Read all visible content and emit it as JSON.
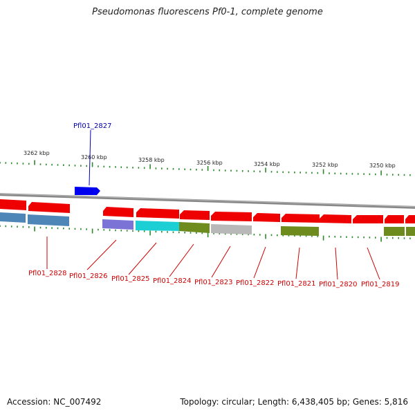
{
  "title": "Pseudomonas fluorescens Pf0-1, complete genome",
  "footer": {
    "accession": "Accession: NC_007492",
    "summary": "Topology: circular; Length: 6,438,405 bp; Genes: 5,816"
  },
  "colors": {
    "backbone": "#888888",
    "forward_gene": "#0000ee",
    "reverse_gene": "#ee0000",
    "tick": "#2a8a2a",
    "label_forward": "#0000aa",
    "label_reverse": "#cc0000",
    "cog_steelblue": "#4f86b8",
    "cog_lavender": "#7b73d6",
    "cog_cyan": "#1ccfd4",
    "cog_olive": "#6e8c1e",
    "cog_gray": "#b8b8b8"
  },
  "ticks": [
    {
      "label": "3262 kbp"
    },
    {
      "label": "3260 kbp"
    },
    {
      "label": "3258 kbp"
    },
    {
      "label": "3256 kbp"
    },
    {
      "label": "3254 kbp"
    },
    {
      "label": "3252 kbp"
    },
    {
      "label": "3250 kbp"
    }
  ],
  "genes": [
    {
      "name": "Pfl01_2827",
      "strand": "forward"
    },
    {
      "name": "Pfl01_2828",
      "strand": "reverse"
    },
    {
      "name": "Pfl01_2826",
      "strand": "reverse"
    },
    {
      "name": "Pfl01_2825",
      "strand": "reverse"
    },
    {
      "name": "Pfl01_2824",
      "strand": "reverse"
    },
    {
      "name": "Pfl01_2823",
      "strand": "reverse"
    },
    {
      "name": "Pfl01_2822",
      "strand": "reverse"
    },
    {
      "name": "Pfl01_2821",
      "strand": "reverse"
    },
    {
      "name": "Pfl01_2820",
      "strand": "reverse"
    },
    {
      "name": "Pfl01_2819",
      "strand": "reverse"
    }
  ]
}
